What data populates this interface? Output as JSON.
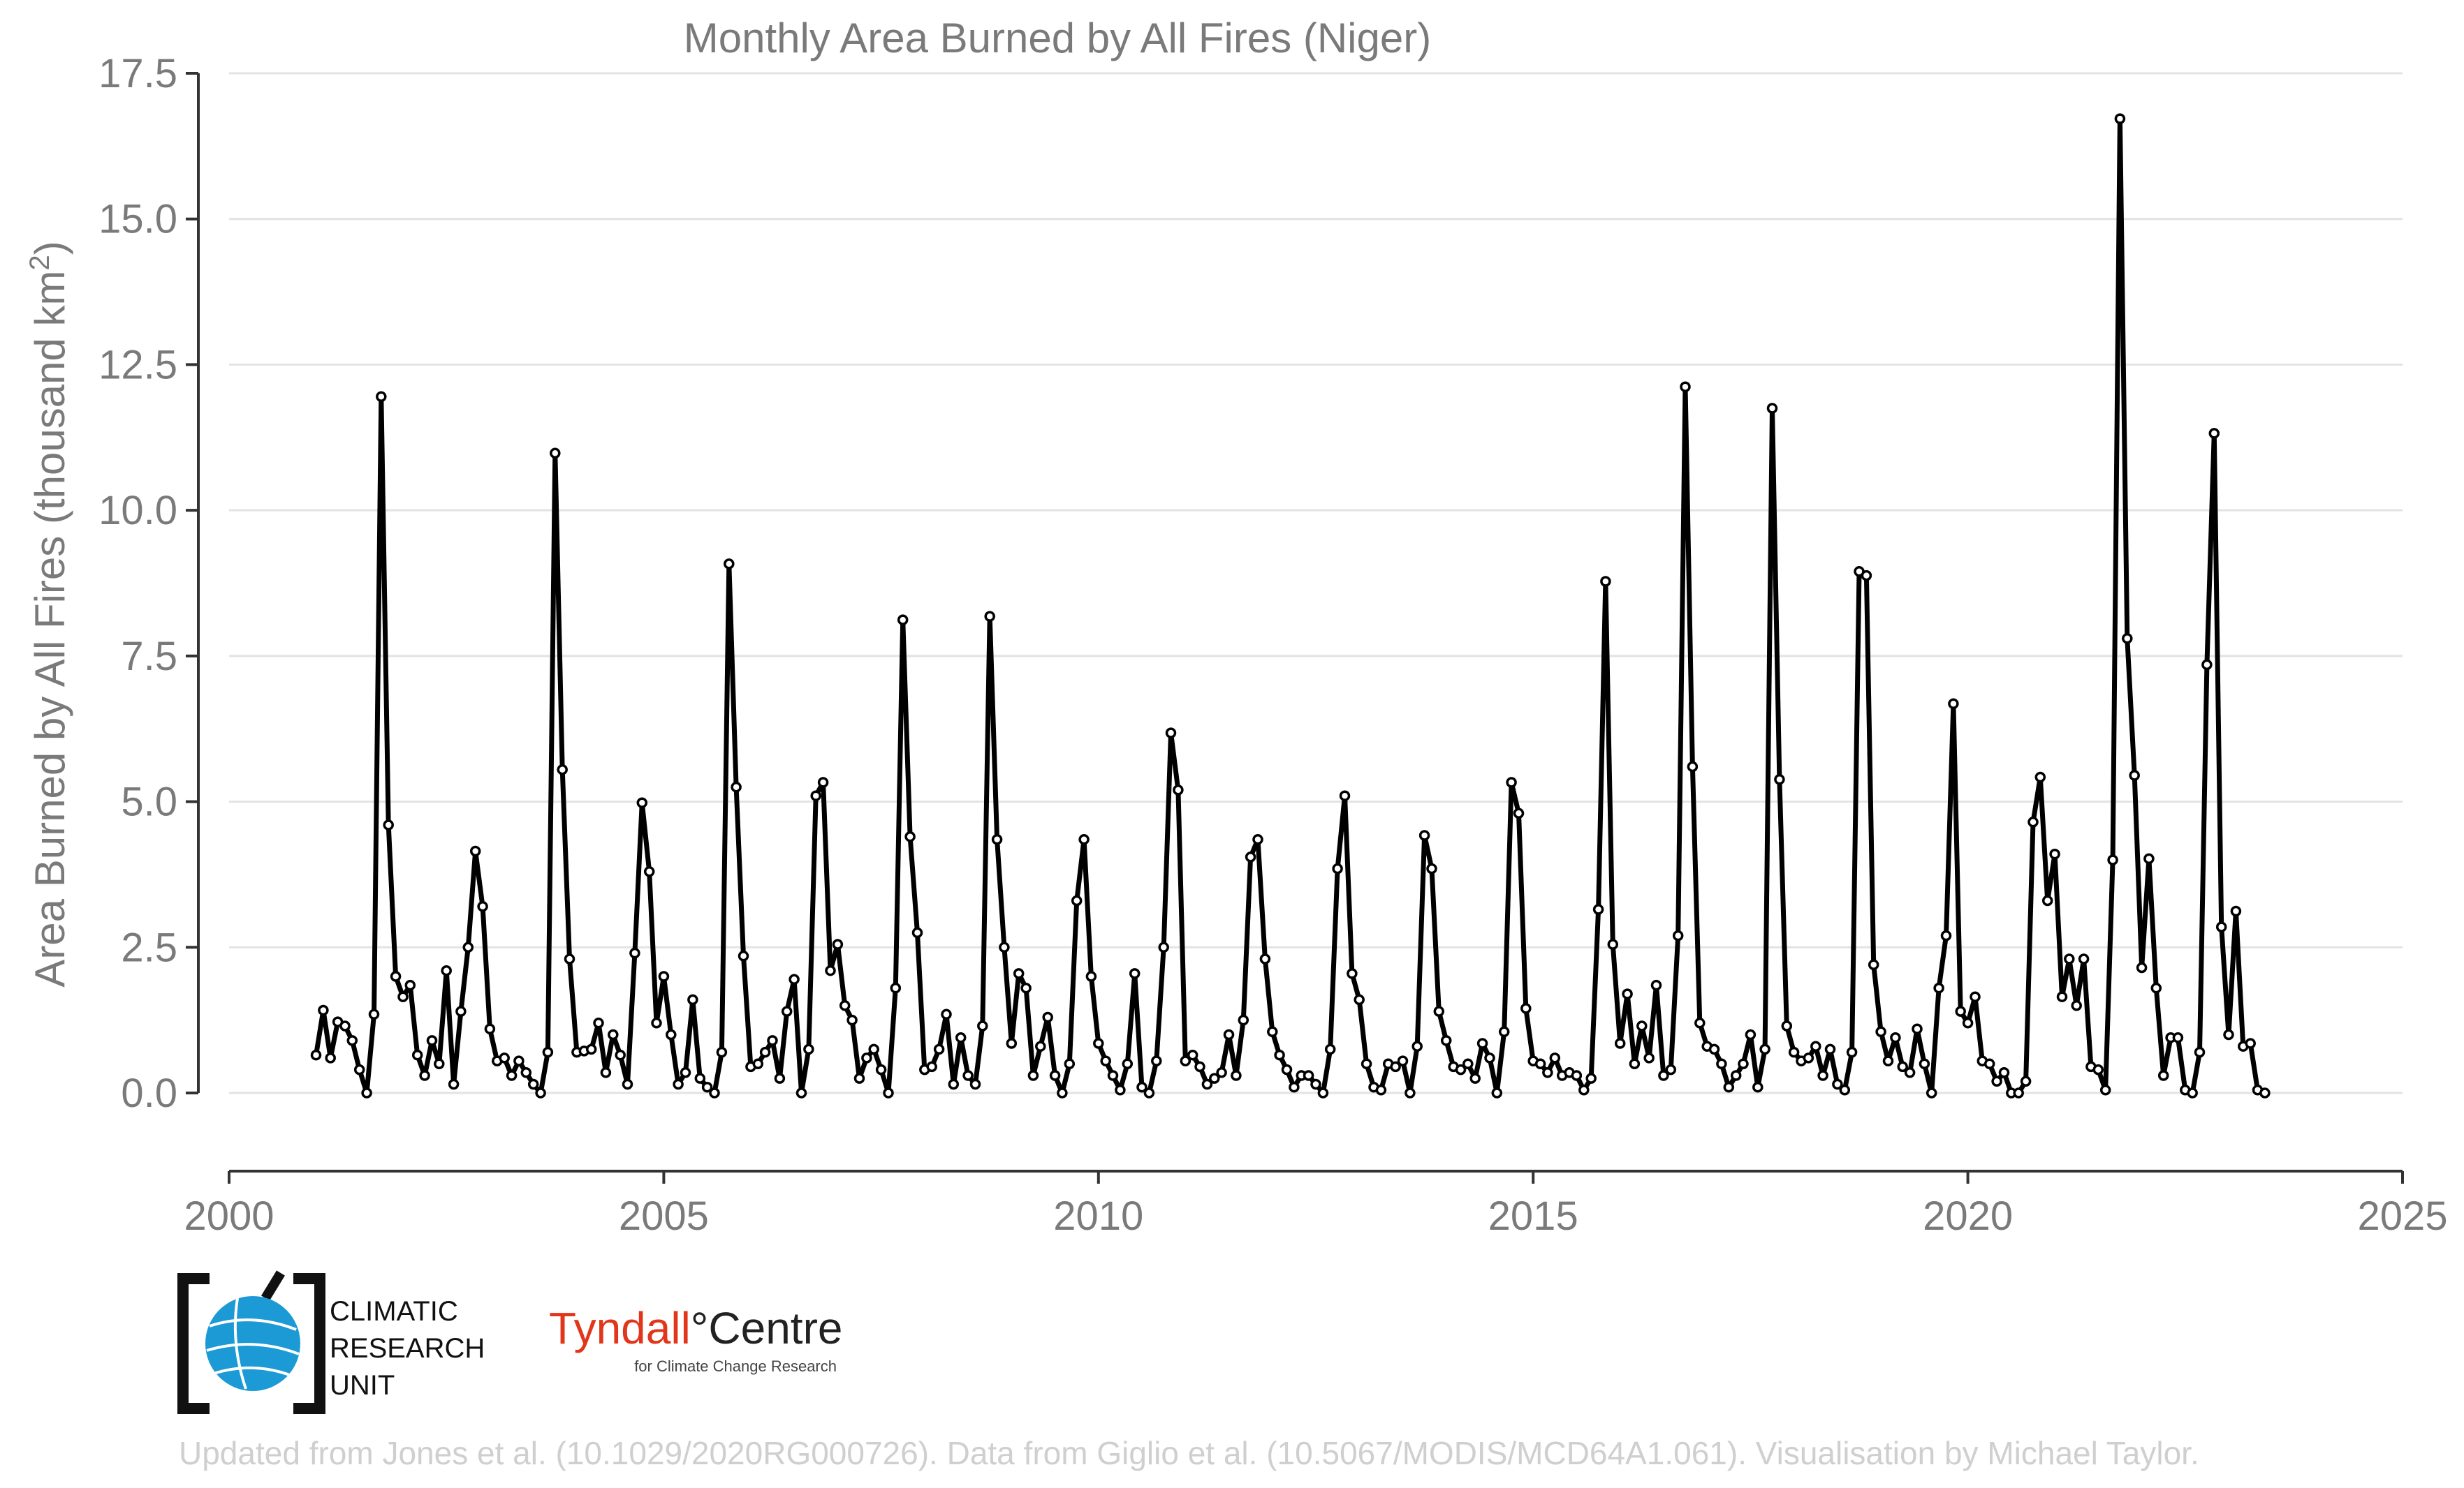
{
  "chart_data": {
    "type": "line",
    "title": "Monthly Area Burned by All Fires (Niger)",
    "ylabel": "Area Burned by All Fires (thousand km",
    "ylabel_sup": "2",
    "ylabel_end": ")",
    "xlim": [
      2000,
      2025
    ],
    "ylim": [
      -1.35,
      17.5
    ],
    "grid": "horizontal",
    "x_ticks": [
      "2000",
      "2005",
      "2010",
      "2015",
      "2020",
      "2025"
    ],
    "y_ticks": [
      "0.0",
      "2.5",
      "5.0",
      "7.5",
      "10.0",
      "12.5",
      "15.0",
      "17.5"
    ],
    "x_start": "2001-01",
    "values": [
      0.65,
      1.42,
      0.6,
      1.22,
      1.15,
      0.9,
      0.4,
      0.0,
      1.35,
      11.95,
      4.6,
      2.0,
      1.65,
      1.85,
      0.65,
      0.3,
      0.9,
      0.5,
      2.1,
      0.15,
      1.4,
      2.5,
      4.15,
      3.2,
      1.1,
      0.55,
      0.6,
      0.3,
      0.55,
      0.35,
      0.15,
      0.0,
      0.7,
      10.98,
      5.55,
      2.3,
      0.7,
      0.72,
      0.75,
      1.2,
      0.35,
      1.0,
      0.65,
      0.15,
      2.4,
      4.98,
      3.8,
      1.2,
      2.0,
      1.0,
      0.15,
      0.35,
      1.6,
      0.25,
      0.1,
      0.0,
      0.7,
      9.08,
      5.25,
      2.35,
      0.45,
      0.5,
      0.7,
      0.9,
      0.25,
      1.4,
      1.95,
      0.0,
      0.75,
      5.1,
      5.33,
      2.1,
      2.55,
      1.5,
      1.25,
      0.25,
      0.6,
      0.75,
      0.4,
      0.0,
      1.8,
      8.12,
      4.4,
      2.75,
      0.4,
      0.45,
      0.75,
      1.35,
      0.15,
      0.95,
      0.3,
      0.15,
      1.15,
      8.18,
      4.35,
      2.5,
      0.85,
      2.05,
      1.8,
      0.3,
      0.8,
      1.3,
      0.3,
      0.0,
      0.5,
      3.3,
      4.35,
      2.0,
      0.85,
      0.55,
      0.3,
      0.05,
      0.5,
      2.05,
      0.1,
      0.0,
      0.55,
      2.5,
      6.18,
      5.2,
      0.55,
      0.65,
      0.45,
      0.15,
      0.25,
      0.35,
      1.0,
      0.3,
      1.25,
      4.05,
      4.35,
      2.3,
      1.05,
      0.65,
      0.4,
      0.1,
      0.3,
      0.3,
      0.15,
      0.0,
      0.75,
      3.85,
      5.1,
      2.05,
      1.6,
      0.5,
      0.1,
      0.05,
      0.5,
      0.45,
      0.55,
      0.0,
      0.8,
      4.42,
      3.85,
      1.4,
      0.9,
      0.45,
      0.4,
      0.5,
      0.25,
      0.85,
      0.6,
      0.0,
      1.05,
      5.33,
      4.8,
      1.45,
      0.55,
      0.5,
      0.35,
      0.6,
      0.3,
      0.35,
      0.3,
      0.05,
      0.25,
      3.15,
      8.78,
      2.55,
      0.85,
      1.7,
      0.5,
      1.15,
      0.6,
      1.85,
      0.3,
      0.4,
      2.7,
      12.12,
      5.6,
      1.2,
      0.8,
      0.75,
      0.5,
      0.1,
      0.3,
      0.5,
      1.0,
      0.1,
      0.75,
      11.75,
      5.38,
      1.15,
      0.7,
      0.55,
      0.6,
      0.8,
      0.3,
      0.75,
      0.15,
      0.05,
      0.7,
      8.95,
      8.88,
      2.2,
      1.05,
      0.55,
      0.95,
      0.45,
      0.35,
      1.1,
      0.5,
      0.0,
      1.8,
      2.7,
      6.68,
      1.4,
      1.2,
      1.65,
      0.55,
      0.5,
      0.2,
      0.35,
      0.0,
      0.0,
      0.2,
      4.65,
      5.42,
      3.3,
      4.1,
      1.65,
      2.3,
      1.5,
      2.3,
      0.45,
      0.4,
      0.05,
      4.0,
      16.72,
      7.8,
      5.45,
      2.15,
      4.02,
      1.8,
      0.3,
      0.95,
      0.95,
      0.05,
      0.0,
      0.7,
      7.35,
      11.32,
      2.85,
      1.0,
      3.12,
      0.8,
      0.85,
      0.05,
      0.0
    ]
  },
  "logos": {
    "cru_lines": [
      "CLIMATIC",
      "RESEARCH",
      "UNIT"
    ],
    "tyndall_name_a": "Tyndall",
    "tyndall_name_b": "°Centre",
    "tyndall_sub": "for Climate Change Research"
  },
  "footer": "Updated from Jones et al. (10.1029/2020RG000726). Data from Giglio et al. (10.5067/MODIS/MCD64A1.061). Visualisation by Michael Taylor."
}
